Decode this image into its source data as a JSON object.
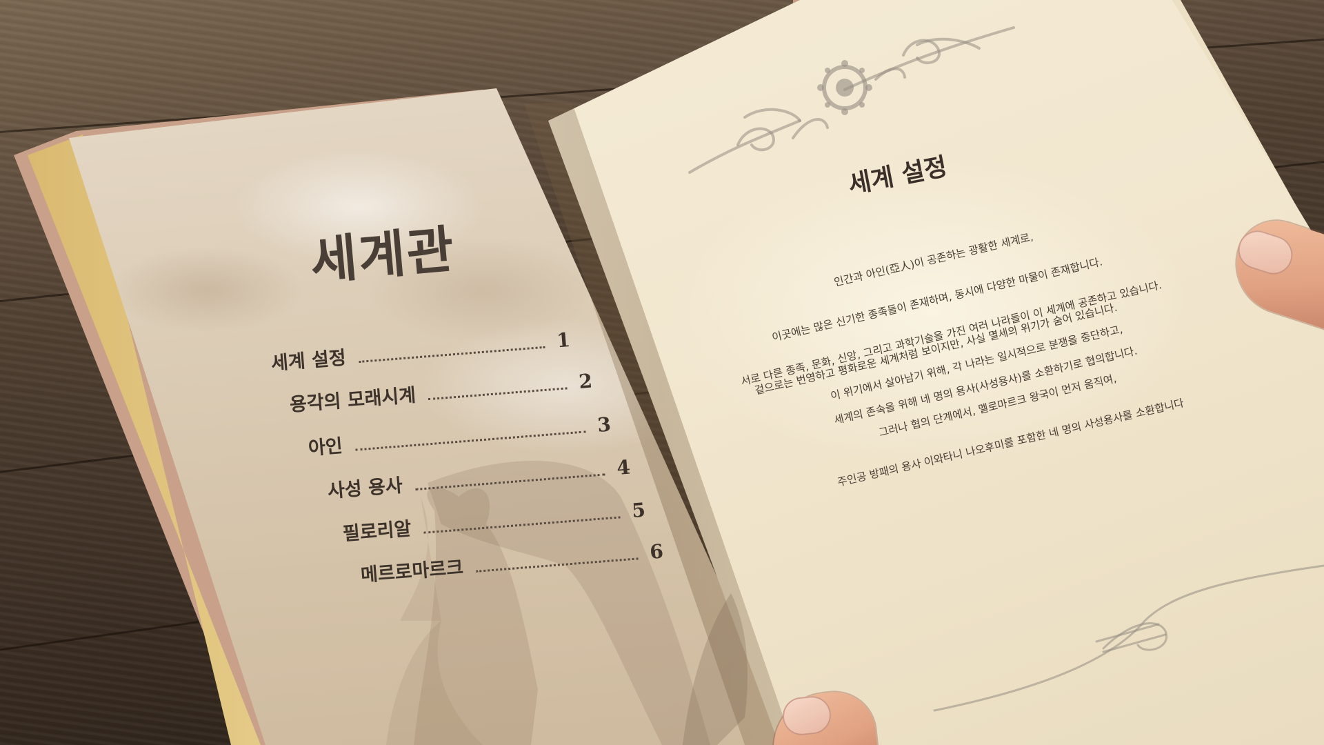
{
  "left_page": {
    "title": "세계관",
    "toc": [
      {
        "label": "세계 설정",
        "page": "1"
      },
      {
        "label": "용각의 모래시계",
        "page": "2"
      },
      {
        "label": "아인",
        "page": "3"
      },
      {
        "label": "사성 용사",
        "page": "4"
      },
      {
        "label": "필로리알",
        "page": "5"
      },
      {
        "label": "메르로마르크",
        "page": "6"
      }
    ]
  },
  "right_page": {
    "title": "세계 설정",
    "paragraph_lines": [
      "인간과 아인(亞人)이 공존하는 광활한 세계로,",
      "이곳에는 많은 신기한 종족들이 존재하며, 동시에 다양한 마물이 존재합니다.",
      "서로 다른 종족, 문화, 신앙, 그리고 과학기술을 가진 여러 나라들이 이 세계에 공존하고 있습니다.",
      "겉으로는 번영하고 평화로운 세계처럼 보이지만, 사실 멸세의 위기가 숨어 있습니다.",
      "이 위기에서 살아남기 위해, 각 나라는 일시적으로 분쟁을 중단하고,",
      "세계의 존속을 위해 네 명의 용사(사성용사)를 소환하기로 협의합니다.",
      "그러나 협의 단계에서, 멜로마르크 왕국이 먼저 움직여,",
      "주인공 방패의 용사 이와타니 나오후미를 포함한 네 명의 사성용사를 소환합니다"
    ]
  },
  "colors": {
    "page_left": "#dccdb7",
    "page_right": "#f2e7cf",
    "text": "#3a3029",
    "cover": "#c9a089"
  }
}
